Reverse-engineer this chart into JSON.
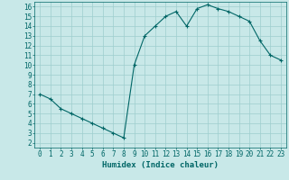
{
  "x": [
    0,
    1,
    2,
    3,
    4,
    5,
    6,
    7,
    8,
    9,
    10,
    11,
    12,
    13,
    14,
    15,
    16,
    17,
    18,
    19,
    20,
    21,
    22,
    23
  ],
  "y": [
    7.0,
    6.5,
    5.5,
    5.0,
    4.5,
    4.0,
    3.5,
    3.0,
    2.5,
    10.0,
    13.0,
    14.0,
    15.0,
    15.5,
    14.0,
    15.8,
    16.2,
    15.8,
    15.5,
    15.0,
    14.5,
    12.5,
    11.0,
    10.5
  ],
  "line_color": "#006666",
  "marker": "+",
  "bg_color": "#c8e8e8",
  "grid_color": "#9ecece",
  "xlabel": "Humidex (Indice chaleur)",
  "xlim": [
    -0.5,
    23.5
  ],
  "ylim": [
    1.5,
    16.5
  ],
  "yticks": [
    2,
    3,
    4,
    5,
    6,
    7,
    8,
    9,
    10,
    11,
    12,
    13,
    14,
    15,
    16
  ],
  "xticks": [
    0,
    1,
    2,
    3,
    4,
    5,
    6,
    7,
    8,
    9,
    10,
    11,
    12,
    13,
    14,
    15,
    16,
    17,
    18,
    19,
    20,
    21,
    22,
    23
  ],
  "font_color": "#006666",
  "font_family": "monospace",
  "tick_fontsize": 5.5,
  "xlabel_fontsize": 6.5
}
